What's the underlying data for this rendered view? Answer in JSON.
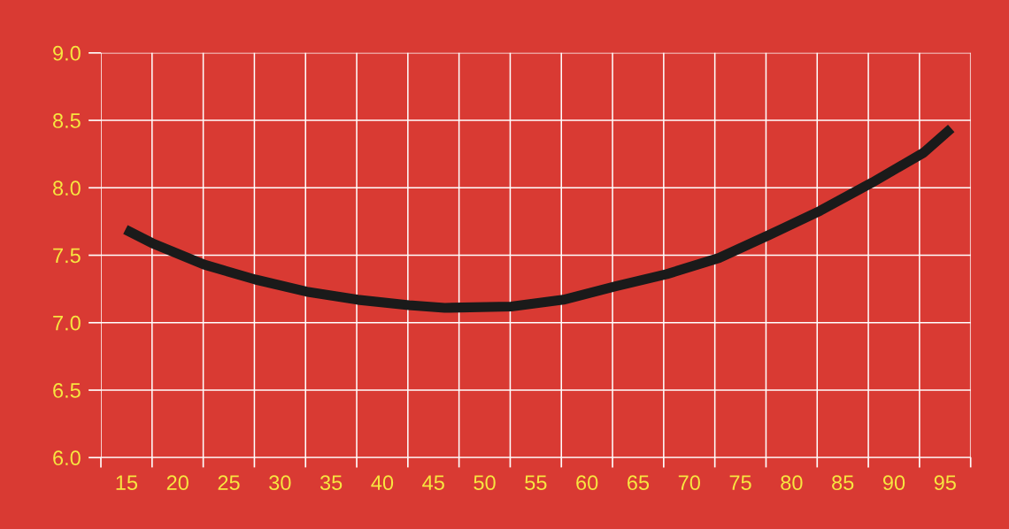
{
  "chart_data": {
    "type": "line",
    "x": [
      14.9,
      17.5,
      22.6,
      27.6,
      32.6,
      37.6,
      42.6,
      46.1,
      52.6,
      57.7,
      62.8,
      67.8,
      72.9,
      77.8,
      82.8,
      87.9,
      92.9,
      95.6
    ],
    "series": [
      {
        "color": "#1a1a1a",
        "values": [
          7.69,
          7.59,
          7.43,
          7.32,
          7.23,
          7.17,
          7.13,
          7.11,
          7.12,
          7.17,
          7.27,
          7.36,
          7.48,
          7.65,
          7.83,
          8.04,
          8.26,
          8.44
        ]
      }
    ],
    "xlim": [
      12.5,
      97.5
    ],
    "xticks": [
      {
        "value": 12.5,
        "label": null
      },
      {
        "value": 15,
        "label": "15"
      },
      {
        "value": 17.5,
        "label": null
      },
      {
        "value": 20,
        "label": "20"
      },
      {
        "value": 22.5,
        "label": null
      },
      {
        "value": 25,
        "label": "25"
      },
      {
        "value": 27.5,
        "label": null
      },
      {
        "value": 30,
        "label": "30"
      },
      {
        "value": 32.5,
        "label": null
      },
      {
        "value": 35,
        "label": "35"
      },
      {
        "value": 37.5,
        "label": null
      },
      {
        "value": 40,
        "label": "40"
      },
      {
        "value": 42.5,
        "label": null
      },
      {
        "value": 45,
        "label": "45"
      },
      {
        "value": 47.5,
        "label": null
      },
      {
        "value": 50,
        "label": "50"
      },
      {
        "value": 52.5,
        "label": null
      },
      {
        "value": 55,
        "label": "55"
      },
      {
        "value": 57.5,
        "label": null
      },
      {
        "value": 60,
        "label": "60"
      },
      {
        "value": 62.5,
        "label": null
      },
      {
        "value": 65,
        "label": "65"
      },
      {
        "value": 67.5,
        "label": null
      },
      {
        "value": 70,
        "label": "70"
      },
      {
        "value": 72.5,
        "label": null
      },
      {
        "value": 75,
        "label": "75"
      },
      {
        "value": 77.5,
        "label": null
      },
      {
        "value": 80,
        "label": "80"
      },
      {
        "value": 82.5,
        "label": null
      },
      {
        "value": 85,
        "label": "85"
      },
      {
        "value": 87.5,
        "label": null
      },
      {
        "value": 90,
        "label": "90"
      },
      {
        "value": 92.5,
        "label": null
      },
      {
        "value": 95,
        "label": "95"
      },
      {
        "value": 97.5,
        "label": null
      }
    ],
    "ylim": [
      6.0,
      9.0
    ],
    "yticks": [
      {
        "value": 6.0,
        "label": "6.0"
      },
      {
        "value": 6.5,
        "label": "6.5"
      },
      {
        "value": 7.0,
        "label": "7.0"
      },
      {
        "value": 7.5,
        "label": "7.5"
      },
      {
        "value": 8.0,
        "label": "8.0"
      },
      {
        "value": 8.5,
        "label": "8.5"
      },
      {
        "value": 9.0,
        "label": "9.0"
      }
    ],
    "grid": true,
    "marker": "none",
    "line_style": "solid"
  }
}
